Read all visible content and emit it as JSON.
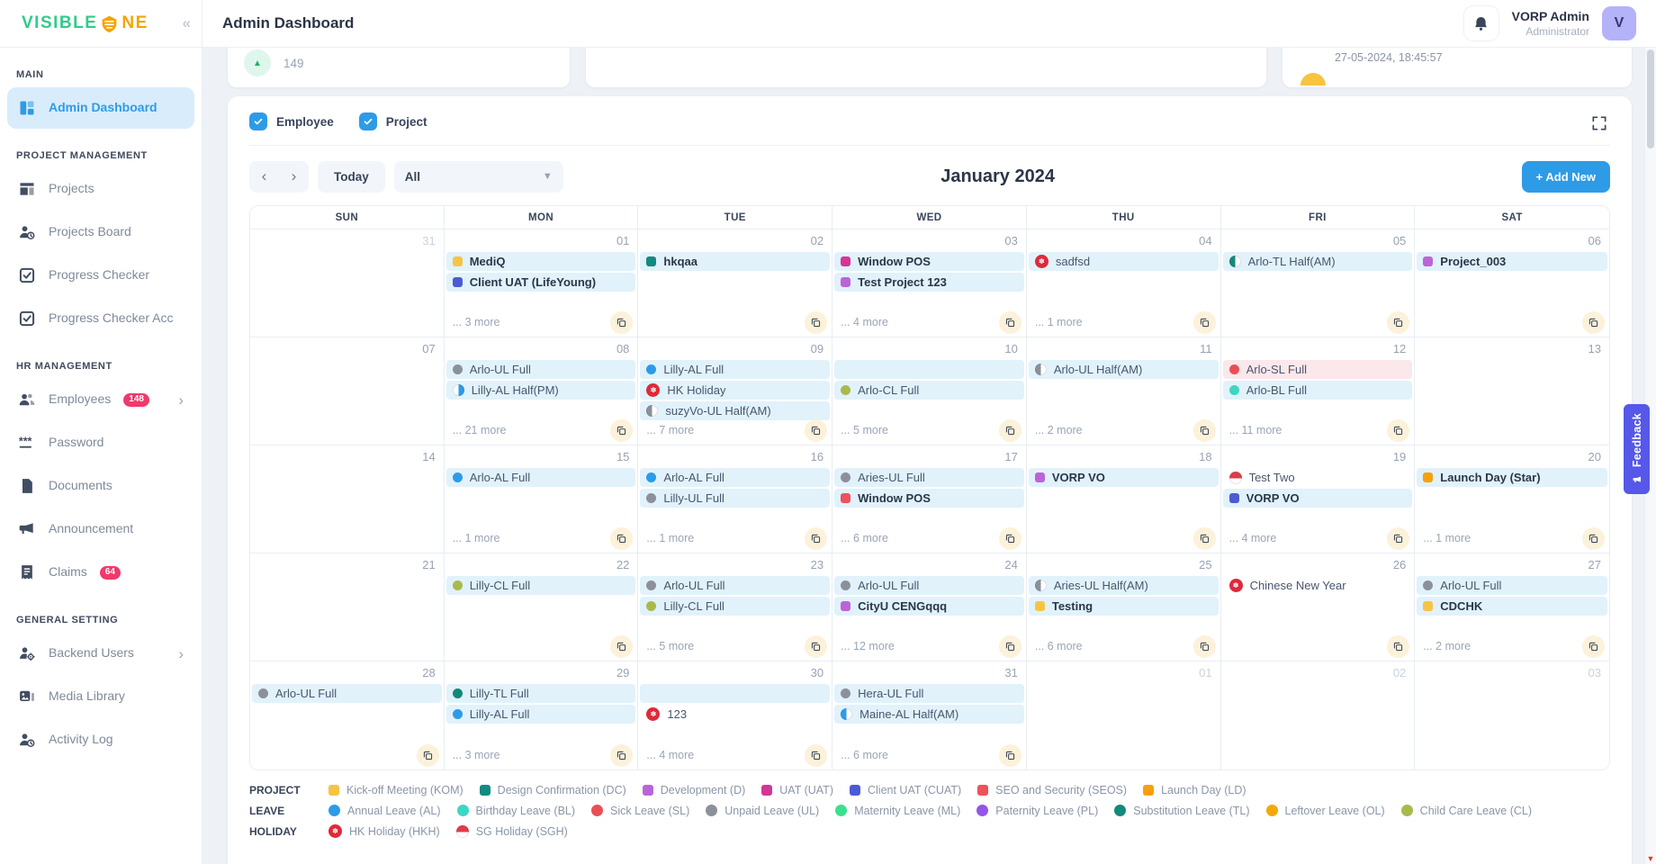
{
  "brand": {
    "name_part1": "VISIBLE",
    "name_part2": "NE"
  },
  "header": {
    "title": "Admin Dashboard",
    "user_name": "VORP Admin",
    "user_role": "Administrator",
    "avatar_initial": "V"
  },
  "topcards": {
    "stat_value": "149",
    "timestamp": "27-05-2024, 18:45:57"
  },
  "sidebar": {
    "sections": [
      {
        "label": "MAIN",
        "items": [
          {
            "label": "Admin Dashboard",
            "icon": "dashboard-icon",
            "active": true
          }
        ]
      },
      {
        "label": "PROJECT MANAGEMENT",
        "items": [
          {
            "label": "Projects",
            "icon": "projects-icon"
          },
          {
            "label": "Projects Board",
            "icon": "projects-board-icon"
          },
          {
            "label": "Progress Checker",
            "icon": "progress-checker-icon"
          },
          {
            "label": "Progress Checker Acc",
            "icon": "progress-checker-acc-icon"
          }
        ]
      },
      {
        "label": "HR MANAGEMENT",
        "items": [
          {
            "label": "Employees",
            "icon": "employees-icon",
            "badge": "148",
            "chevron": true
          },
          {
            "label": "Password",
            "icon": "password-icon"
          },
          {
            "label": "Documents",
            "icon": "documents-icon"
          },
          {
            "label": "Announcement",
            "icon": "announcement-icon"
          },
          {
            "label": "Claims",
            "icon": "claims-icon",
            "badge": "64"
          }
        ]
      },
      {
        "label": "GENERAL SETTING",
        "items": [
          {
            "label": "Backend Users",
            "icon": "backend-users-icon",
            "chevron": true
          },
          {
            "label": "Media Library",
            "icon": "media-library-icon"
          },
          {
            "label": "Activity Log",
            "icon": "activity-log-icon"
          }
        ]
      }
    ]
  },
  "filters": {
    "employee_label": "Employee",
    "project_label": "Project"
  },
  "toolbar": {
    "prev_label": "‹",
    "next_label": "›",
    "today_label": "Today",
    "filter_value": "All",
    "month_title": "January 2024",
    "add_new_label": "+ Add New"
  },
  "colors": {
    "kom": "#F6C445",
    "dc": "#148A80",
    "d": "#BB64D8",
    "uat": "#D23795",
    "cuat": "#4C5BD4",
    "seos": "#F0515C",
    "ld": "#F5A10C",
    "al": "#2D9BE8",
    "bl": "#3DD6C2",
    "sl": "#EA4F55",
    "ul": "#8C909A",
    "ml": "#3BE08F",
    "pl": "#9455E9",
    "tl": "#12897B",
    "ol": "#F3A90B",
    "cl": "#A9BA4C",
    "hkh": "#DE2A3B",
    "sgh": "#E23B4B"
  },
  "calendar": {
    "day_headers": [
      "SUN",
      "MON",
      "TUE",
      "WED",
      "THU",
      "FRI",
      "SAT"
    ],
    "weeks": [
      [
        {
          "date": "31",
          "out": true,
          "events": []
        },
        {
          "date": "01",
          "events": [
            {
              "label": "MediQ",
              "icon": "square",
              "color": "kom",
              "bold": true
            },
            {
              "label": "Client UAT (LifeYoung)",
              "icon": "square",
              "color": "cuat",
              "bold": true
            }
          ],
          "more": "... 3 more",
          "copy": true
        },
        {
          "date": "02",
          "events": [
            {
              "label": "hkqaa",
              "icon": "square",
              "color": "dc",
              "bold": true
            }
          ],
          "copy": true
        },
        {
          "date": "03",
          "events": [
            {
              "label": "Window POS",
              "icon": "square",
              "color": "uat",
              "bold": true
            },
            {
              "label": "Test Project 123",
              "icon": "square",
              "color": "d",
              "bold": true
            }
          ],
          "more": "... 4 more",
          "copy": true
        },
        {
          "date": "04",
          "events": [
            {
              "label": "sadfsd",
              "icon": "hk-flag"
            }
          ],
          "more": "... 1 more",
          "copy": true
        },
        {
          "date": "05",
          "events": [
            {
              "label": "Arlo-TL Half(AM)",
              "icon": "half-left",
              "color": "tl"
            }
          ],
          "copy": true
        },
        {
          "date": "06",
          "events": [
            {
              "label": "Project_003",
              "icon": "square",
              "color": "d",
              "bold": true
            }
          ],
          "copy": true
        }
      ],
      [
        {
          "date": "07",
          "events": []
        },
        {
          "date": "08",
          "events": [
            {
              "label": "Arlo-UL Full",
              "icon": "dot",
              "color": "ul"
            },
            {
              "label": "Lilly-AL Half(PM)",
              "icon": "half-right",
              "color": "al"
            }
          ],
          "more": "... 21 more",
          "copy": true
        },
        {
          "date": "09",
          "events": [
            {
              "label": "Lilly-AL Full",
              "icon": "dot",
              "color": "al"
            },
            {
              "label": "HK Holiday",
              "icon": "hk-flag"
            },
            {
              "label": "suzyVo-UL Half(AM)",
              "icon": "half-left",
              "color": "ul"
            }
          ],
          "more": "... 7 more",
          "copy": true
        },
        {
          "date": "10",
          "events": [
            {
              "spacer": true
            },
            {
              "label": "Arlo-CL Full",
              "icon": "dot",
              "color": "cl"
            }
          ],
          "more": "... 5 more",
          "copy": true
        },
        {
          "date": "11",
          "events": [
            {
              "label": "Arlo-UL Half(AM)",
              "icon": "half-left",
              "color": "ul"
            }
          ],
          "more": "... 2 more",
          "copy": true
        },
        {
          "date": "12",
          "events": [
            {
              "label": "Arlo-SL Full",
              "icon": "dot",
              "color": "sl",
              "bg": "pink"
            },
            {
              "label": "Arlo-BL Full",
              "icon": "dot",
              "color": "bl"
            }
          ],
          "more": "... 11 more",
          "copy": true
        },
        {
          "date": "13",
          "events": []
        }
      ],
      [
        {
          "date": "14",
          "events": []
        },
        {
          "date": "15",
          "events": [
            {
              "label": "Arlo-AL Full",
              "icon": "dot",
              "color": "al"
            }
          ],
          "more": "... 1 more",
          "copy": true
        },
        {
          "date": "16",
          "events": [
            {
              "label": "Arlo-AL Full",
              "icon": "dot",
              "color": "al"
            },
            {
              "label": "Lilly-UL Full",
              "icon": "dot",
              "color": "ul"
            }
          ],
          "more": "... 1 more",
          "copy": true
        },
        {
          "date": "17",
          "events": [
            {
              "label": "Aries-UL Full",
              "icon": "dot",
              "color": "ul"
            },
            {
              "label": "Window POS",
              "icon": "square",
              "color": "seos",
              "bold": true
            }
          ],
          "more": "... 6 more",
          "copy": true
        },
        {
          "date": "18",
          "events": [
            {
              "label": "VORP VO",
              "icon": "square",
              "color": "d",
              "bold": true
            }
          ],
          "copy": true
        },
        {
          "date": "19",
          "events": [
            {
              "label": "Test Two",
              "icon": "sg-flag",
              "bg": "none"
            },
            {
              "label": "VORP VO",
              "icon": "square",
              "color": "cuat",
              "bold": true
            }
          ],
          "more": "... 4 more",
          "copy": true
        },
        {
          "date": "20",
          "events": [
            {
              "label": "Launch Day (Star)",
              "icon": "square",
              "color": "ld",
              "bold": true
            }
          ],
          "more": "... 1 more",
          "copy": true
        }
      ],
      [
        {
          "date": "21",
          "events": []
        },
        {
          "date": "22",
          "events": [
            {
              "label": "Lilly-CL Full",
              "icon": "dot",
              "color": "cl"
            }
          ],
          "copy": true
        },
        {
          "date": "23",
          "events": [
            {
              "label": "Arlo-UL Full",
              "icon": "dot",
              "color": "ul"
            },
            {
              "label": "Lilly-CL Full",
              "icon": "dot",
              "color": "cl"
            }
          ],
          "more": "... 5 more",
          "copy": true
        },
        {
          "date": "24",
          "events": [
            {
              "label": "Arlo-UL Full",
              "icon": "dot",
              "color": "ul"
            },
            {
              "label": "CityU CENGqqq",
              "icon": "square",
              "color": "d",
              "bold": true
            }
          ],
          "more": "... 12 more",
          "copy": true
        },
        {
          "date": "25",
          "events": [
            {
              "label": "Aries-UL Half(AM)",
              "icon": "half-left",
              "color": "ul"
            },
            {
              "label": "Testing",
              "icon": "square",
              "color": "kom",
              "bold": true
            }
          ],
          "more": "... 6 more",
          "copy": true
        },
        {
          "date": "26",
          "events": [
            {
              "label": "Chinese New Year",
              "icon": "hk-flag",
              "bg": "none"
            }
          ],
          "copy": true
        },
        {
          "date": "27",
          "events": [
            {
              "label": "Arlo-UL Full",
              "icon": "dot",
              "color": "ul"
            },
            {
              "label": "CDCHK",
              "icon": "square",
              "color": "kom",
              "bold": true
            }
          ],
          "more": "... 2 more",
          "copy": true
        }
      ],
      [
        {
          "date": "28",
          "events": [
            {
              "label": "Arlo-UL Full",
              "icon": "dot",
              "color": "ul"
            }
          ],
          "copy": true
        },
        {
          "date": "29",
          "events": [
            {
              "label": "Lilly-TL Full",
              "icon": "dot",
              "color": "tl"
            },
            {
              "label": "Lilly-AL Full",
              "icon": "dot",
              "color": "al"
            }
          ],
          "more": "... 3 more",
          "copy": true
        },
        {
          "date": "30",
          "events": [
            {
              "spacer": true
            },
            {
              "label": "123",
              "icon": "hk-flag",
              "bg": "none"
            }
          ],
          "more": "... 4 more",
          "copy": true
        },
        {
          "date": "31",
          "events": [
            {
              "label": "Hera-UL Full",
              "icon": "dot",
              "color": "ul"
            },
            {
              "label": "Maine-AL Half(AM)",
              "icon": "half-left",
              "color": "al"
            }
          ],
          "more": "... 6 more",
          "copy": true
        },
        {
          "date": "01",
          "out": true,
          "events": []
        },
        {
          "date": "02",
          "out": true,
          "events": []
        },
        {
          "date": "03",
          "out": true,
          "events": []
        }
      ]
    ]
  },
  "legend": {
    "rows": [
      {
        "label": "PROJECT",
        "shape": "square",
        "items": [
          {
            "label": "Kick-off Meeting (KOM)",
            "color": "kom"
          },
          {
            "label": "Design Confirmation (DC)",
            "color": "dc"
          },
          {
            "label": "Development (D)",
            "color": "d"
          },
          {
            "label": "UAT (UAT)",
            "color": "uat"
          },
          {
            "label": "Client UAT (CUAT)",
            "color": "cuat"
          },
          {
            "label": "SEO and Security (SEOS)",
            "color": "seos"
          },
          {
            "label": "Launch Day (LD)",
            "color": "ld"
          }
        ]
      },
      {
        "label": "LEAVE",
        "shape": "dot",
        "items": [
          {
            "label": "Annual Leave (AL)",
            "color": "al"
          },
          {
            "label": "Birthday Leave (BL)",
            "color": "bl"
          },
          {
            "label": "Sick Leave (SL)",
            "color": "sl"
          },
          {
            "label": "Unpaid Leave (UL)",
            "color": "ul"
          },
          {
            "label": "Maternity Leave (ML)",
            "color": "ml"
          },
          {
            "label": "Paternity Leave (PL)",
            "color": "pl"
          },
          {
            "label": "Substitution Leave (TL)",
            "color": "tl"
          },
          {
            "label": "Leftover Leave (OL)",
            "color": "ol"
          },
          {
            "label": "Child Care Leave (CL)",
            "color": "cl"
          }
        ]
      },
      {
        "label": "HOLIDAY",
        "shape": "icon",
        "items": [
          {
            "label": "HK Holiday (HKH)",
            "icon": "hk-flag"
          },
          {
            "label": "SG Holiday (SGH)",
            "icon": "sg-flag"
          }
        ]
      }
    ]
  },
  "feedback_label": "Feedback"
}
